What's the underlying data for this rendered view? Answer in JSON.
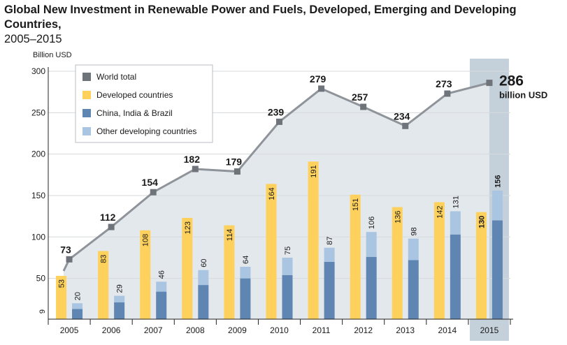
{
  "title": "Global New Investment in Renewable Power and Fuels, Developed, Emerging and Developing Countries,",
  "subtitle": "2005–2015",
  "chart_data": {
    "type": "bar",
    "ylabel": "Billion USD",
    "ylim": [
      0,
      300
    ],
    "yticks": [
      50,
      100,
      150,
      200,
      250,
      300
    ],
    "extra_axis_label": "9",
    "categories": [
      "2005",
      "2006",
      "2007",
      "2008",
      "2009",
      "2010",
      "2011",
      "2012",
      "2013",
      "2014",
      "2015"
    ],
    "highlight_category": "2015",
    "legend_position": "top-left",
    "series": [
      {
        "name": "World total",
        "type": "line",
        "values": [
          73,
          112,
          154,
          182,
          179,
          239,
          279,
          257,
          234,
          273,
          286
        ]
      },
      {
        "name": "Developed countries",
        "type": "bar",
        "values": [
          53,
          83,
          108,
          123,
          114,
          164,
          191,
          151,
          136,
          142,
          130
        ]
      },
      {
        "name": "China, India & Brazil",
        "type": "stacked-bar-bottom",
        "values": [
          13,
          21,
          34,
          42,
          50,
          54,
          70,
          76,
          72,
          103,
          120
        ]
      },
      {
        "name": "Other developing countries",
        "type": "stacked-bar-top",
        "values": [
          7,
          8,
          12,
          18,
          14,
          21,
          17,
          30,
          26,
          28,
          36
        ]
      }
    ],
    "emerging_total_labels": [
      "20",
      "29",
      "46",
      "60",
      "64",
      "75",
      "87",
      "106",
      "98",
      "131",
      "156"
    ],
    "world_total_labels": [
      "73",
      "112",
      "154",
      "182",
      "179",
      "239",
      "279",
      "257",
      "234",
      "273",
      "286"
    ],
    "final_annotation": {
      "value": "286",
      "unit": "billion USD"
    },
    "colors": {
      "world": "#8f949a",
      "area": "#e3e8ec",
      "developed": "#fdd15c",
      "cib": "#5f86b2",
      "other": "#a9c5e2",
      "highlight": "#c5d1da",
      "marker": "#6e7479"
    }
  }
}
